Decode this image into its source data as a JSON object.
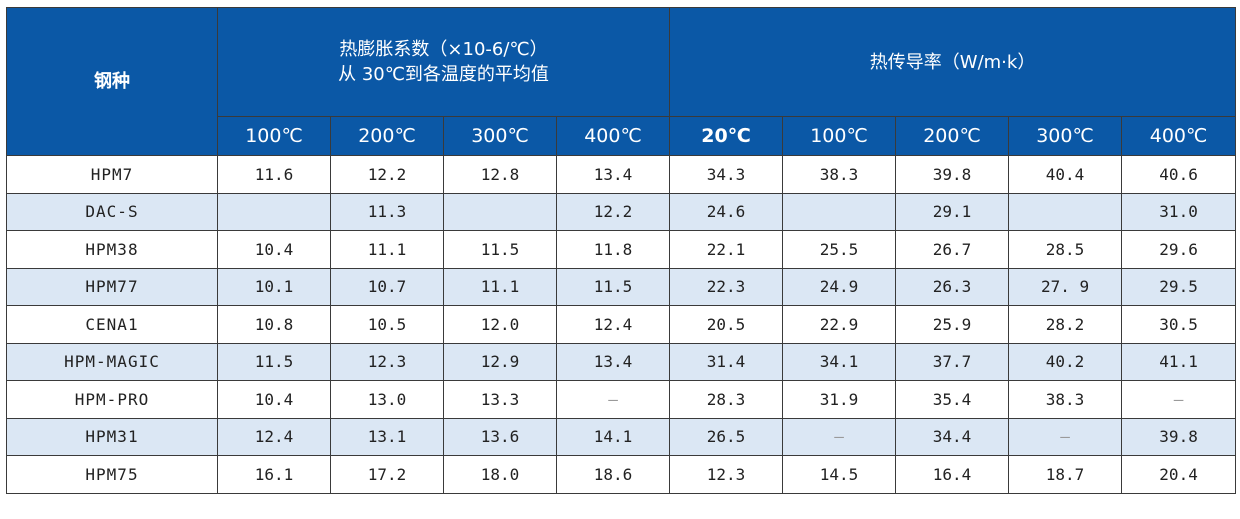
{
  "header": {
    "steel_label": "钢种",
    "expansion_line1": "热膨胀系数（×10-6/℃）",
    "expansion_line2": "从 30℃到各温度的平均值",
    "conductivity_label": "热传导率（W/m·k）",
    "expansion_temps": [
      "100℃",
      "200℃",
      "300℃",
      "400℃"
    ],
    "conductivity_temps": [
      "20℃",
      "100℃",
      "200℃",
      "300℃",
      "400℃"
    ]
  },
  "colors": {
    "header_bg": "#0b58a6",
    "stripe_bg": "#dbe7f4",
    "border": "#3a3a3a"
  },
  "rows": [
    {
      "name": "HPM7",
      "values": [
        "11.6",
        "12.2",
        "12.8",
        "13.4",
        "34.3",
        "38.3",
        "39.8",
        "40.4",
        "40.6"
      ]
    },
    {
      "name": "DAC-S",
      "values": [
        "",
        "11.3",
        "",
        "12.2",
        "24.6",
        "",
        "29.1",
        "",
        "31.0"
      ]
    },
    {
      "name": "HPM38",
      "values": [
        "10.4",
        "11.1",
        "11.5",
        "11.8",
        "22.1",
        "25.5",
        "26.7",
        "28.5",
        "29.6"
      ]
    },
    {
      "name": "HPM77",
      "values": [
        "10.1",
        "10.7",
        "11.1",
        "11.5",
        "22.3",
        "24.9",
        "26.3",
        "27. 9",
        "29.5"
      ]
    },
    {
      "name": "CENA1",
      "values": [
        "10.8",
        "10.5",
        "12.0",
        "12.4",
        "20.5",
        "22.9",
        "25.9",
        "28.2",
        "30.5"
      ]
    },
    {
      "name": "HPM-MAGIC",
      "values": [
        "11.5",
        "12.3",
        "12.9",
        "13.4",
        "31.4",
        "34.1",
        "37.7",
        "40.2",
        "41.1"
      ]
    },
    {
      "name": "HPM-PRO",
      "values": [
        "10.4",
        "13.0",
        "13.3",
        "–",
        "28.3",
        "31.9",
        "35.4",
        "38.3",
        "–"
      ]
    },
    {
      "name": "HPM31",
      "values": [
        "12.4",
        "13.1",
        "13.6",
        "14.1",
        "26.5",
        "–",
        "34.4",
        "–",
        "39.8"
      ]
    },
    {
      "name": "HPM75",
      "values": [
        "16.1",
        "17.2",
        "18.0",
        "18.6",
        "12.3",
        "14.5",
        "16.4",
        "18.7",
        "20.4"
      ]
    }
  ]
}
